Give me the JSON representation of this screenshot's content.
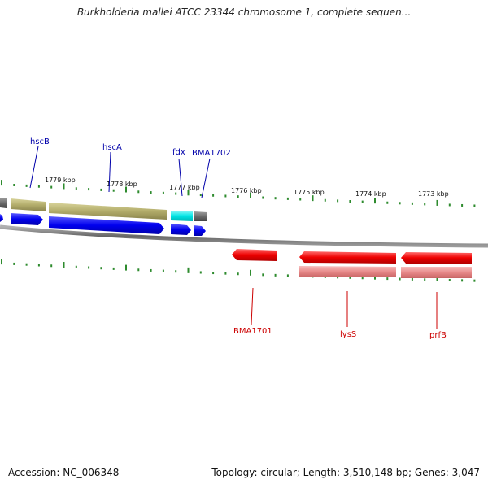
{
  "title": "Burkholderia mallei ATCC 23344 chromosome 1, complete sequen...",
  "footer": {
    "accession": "Accession: NC_006348",
    "stats": "Topology: circular; Length: 3,510,148 bp; Genes: 3,047"
  },
  "colors": {
    "forward_cds": "#0000ee",
    "forward_gene": "#b3ad6b",
    "forward_highlight": "#00e5e5",
    "forward_gray": "#6c6c6c",
    "reverse_cds": "#ee0000",
    "reverse_gene": "#e88a8a",
    "backbone": "#666666",
    "ticks": "#2e8b2e",
    "forward_label": "#0000aa",
    "reverse_label": "#cc0000"
  },
  "scale_labels": [
    "1779 kbp",
    "1778 kbp",
    "1777 kbp",
    "1776 kbp",
    "1775 kbp",
    "1774 kbp",
    "1773 kbp"
  ],
  "forward_labels": [
    "hscB",
    "hscA",
    "fdx",
    "BMA1702"
  ],
  "reverse_labels": [
    "BMA1701",
    "lysS",
    "prfB"
  ]
}
